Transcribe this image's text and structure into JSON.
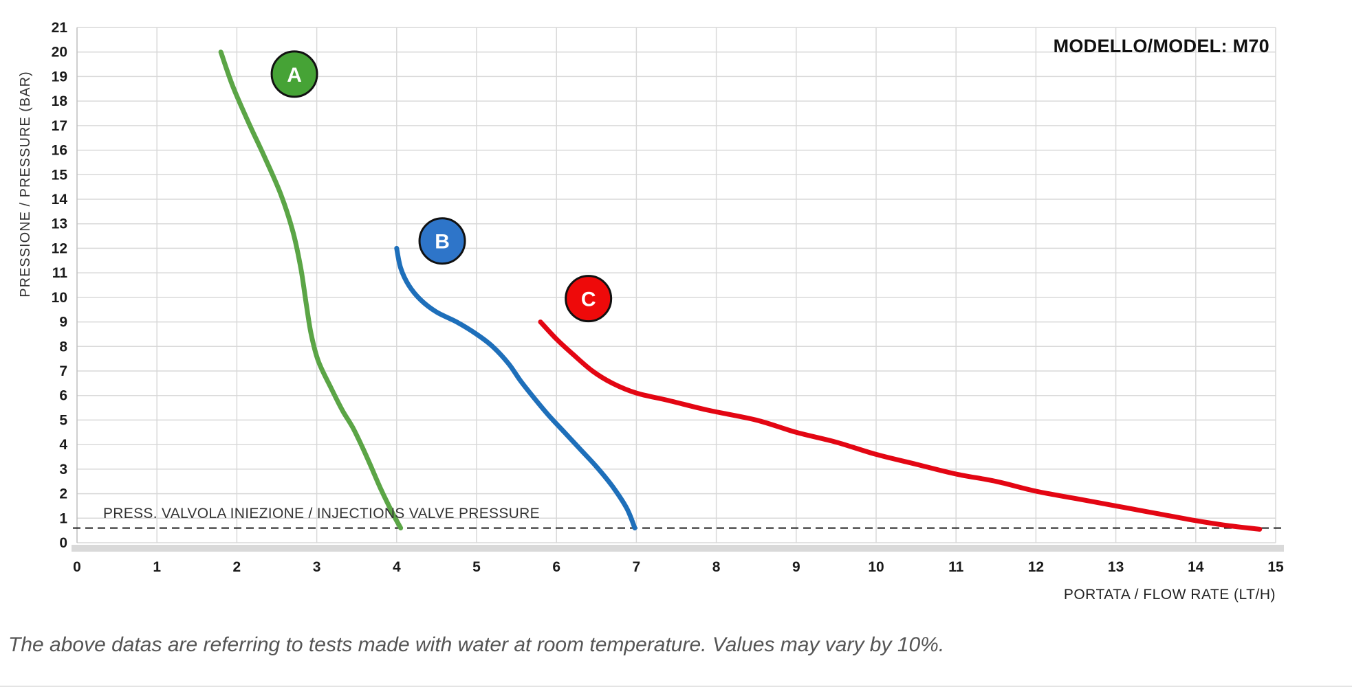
{
  "footer": {
    "note": "The above datas are referring to tests made with water at room temperature. Values may vary by 10%."
  },
  "chart_data": {
    "type": "line",
    "title": "MODELLO/MODEL: M70",
    "xlabel": "PORTATA / FLOW RATE (LT/H)",
    "ylabel": "PRESSIONE / PRESSURE (BAR)",
    "xlim": [
      0,
      15
    ],
    "ylim": [
      0,
      21
    ],
    "x_ticks": [
      0,
      1,
      2,
      3,
      4,
      5,
      6,
      7,
      8,
      9,
      10,
      11,
      12,
      13,
      14,
      15
    ],
    "y_ticks": [
      0,
      1,
      2,
      3,
      4,
      5,
      6,
      7,
      8,
      9,
      10,
      11,
      12,
      13,
      14,
      15,
      16,
      17,
      18,
      19,
      20,
      21
    ],
    "grid": true,
    "grid_color": "#d9d9d9",
    "axis_band_color": "#d9d9d9",
    "legend_position": "none",
    "valve_line": {
      "y": 0.6,
      "style": "dashed",
      "color": "#1a1a1a",
      "label": "PRESS. VALVOLA INIEZIONE / INJECTIONS VALVE PRESSURE"
    },
    "series": [
      {
        "name": "A",
        "color": "#5ba546",
        "badge": {
          "x": 2.72,
          "y": 19.1,
          "fill": "#46a336",
          "ring": "#111111"
        },
        "points": [
          [
            1.8,
            20
          ],
          [
            1.95,
            18.6
          ],
          [
            2.15,
            17.1
          ],
          [
            2.35,
            15.7
          ],
          [
            2.55,
            14.2
          ],
          [
            2.7,
            12.7
          ],
          [
            2.8,
            11.2
          ],
          [
            2.87,
            9.7
          ],
          [
            2.93,
            8.5
          ],
          [
            3.02,
            7.4
          ],
          [
            3.18,
            6.3
          ],
          [
            3.32,
            5.4
          ],
          [
            3.45,
            4.7
          ],
          [
            3.57,
            3.9
          ],
          [
            3.68,
            3.1
          ],
          [
            3.8,
            2.2
          ],
          [
            3.95,
            1.2
          ],
          [
            4.05,
            0.6
          ]
        ]
      },
      {
        "name": "B",
        "color": "#1e6fba",
        "badge": {
          "x": 4.57,
          "y": 12.3,
          "fill": "#2e75c9",
          "ring": "#111111"
        },
        "points": [
          [
            4.0,
            12
          ],
          [
            4.05,
            11.2
          ],
          [
            4.15,
            10.5
          ],
          [
            4.3,
            9.9
          ],
          [
            4.5,
            9.4
          ],
          [
            4.75,
            9.0
          ],
          [
            5.0,
            8.5
          ],
          [
            5.2,
            8.0
          ],
          [
            5.4,
            7.3
          ],
          [
            5.55,
            6.6
          ],
          [
            5.72,
            5.9
          ],
          [
            5.9,
            5.2
          ],
          [
            6.1,
            4.5
          ],
          [
            6.3,
            3.8
          ],
          [
            6.5,
            3.1
          ],
          [
            6.7,
            2.3
          ],
          [
            6.88,
            1.4
          ],
          [
            6.98,
            0.6
          ]
        ]
      },
      {
        "name": "C",
        "color": "#e30613",
        "badge": {
          "x": 6.4,
          "y": 9.95,
          "fill": "#ee0a0a",
          "ring": "#111111"
        },
        "points": [
          [
            5.8,
            9
          ],
          [
            6.0,
            8.3
          ],
          [
            6.2,
            7.7
          ],
          [
            6.45,
            7.0
          ],
          [
            6.7,
            6.5
          ],
          [
            7.0,
            6.1
          ],
          [
            7.4,
            5.8
          ],
          [
            7.9,
            5.4
          ],
          [
            8.5,
            5.0
          ],
          [
            9.0,
            4.5
          ],
          [
            9.5,
            4.1
          ],
          [
            10.0,
            3.6
          ],
          [
            10.5,
            3.2
          ],
          [
            11.0,
            2.8
          ],
          [
            11.5,
            2.5
          ],
          [
            12.0,
            2.1
          ],
          [
            12.5,
            1.8
          ],
          [
            13.0,
            1.5
          ],
          [
            13.5,
            1.2
          ],
          [
            14.0,
            0.9
          ],
          [
            14.4,
            0.7
          ],
          [
            14.8,
            0.55
          ]
        ]
      }
    ]
  }
}
